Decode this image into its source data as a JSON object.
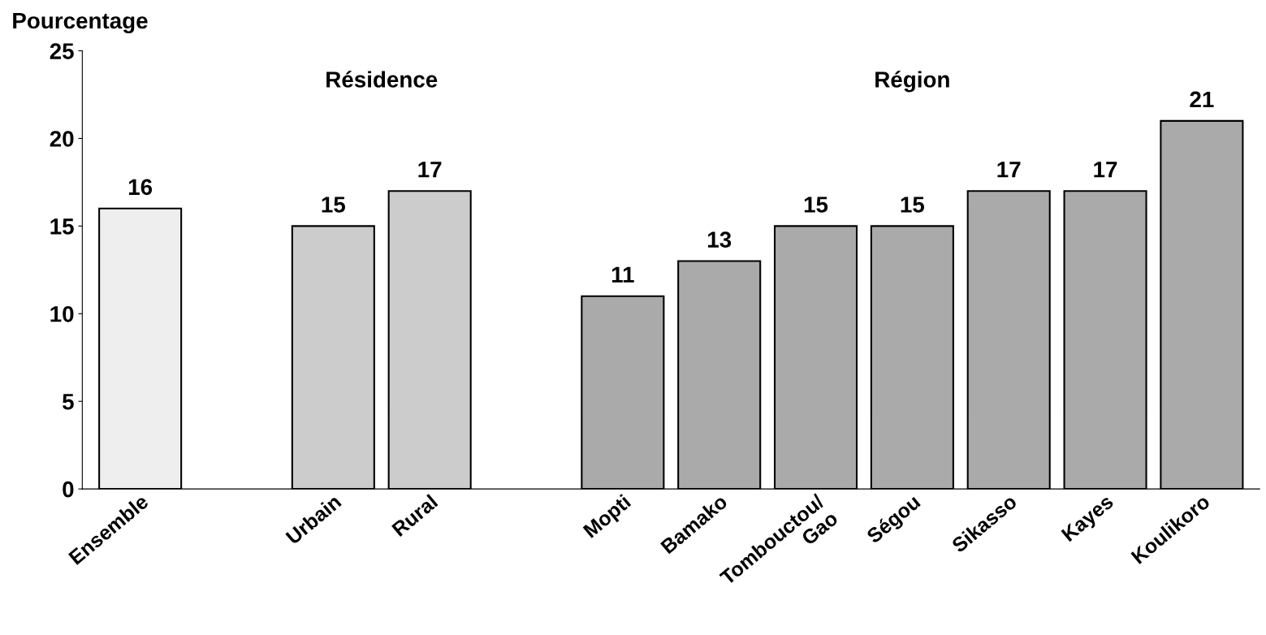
{
  "chart_data": {
    "type": "bar",
    "ylabel": "Pourcentage",
    "categories": [
      "Ensemble",
      null,
      "Urbain",
      "Rural",
      null,
      "Mopti",
      "Bamako",
      "Tombouctou/\nGao",
      "Ségou",
      "Sikasso",
      "Kayes",
      "Koulikoro"
    ],
    "values": [
      16,
      null,
      15,
      17,
      null,
      11,
      13,
      15,
      15,
      17,
      17,
      21
    ],
    "colors": [
      "#eeeeee",
      null,
      "#cccccc",
      "#cccccc",
      null,
      "#aaaaaa",
      "#aaaaaa",
      "#aaaaaa",
      "#aaaaaa",
      "#aaaaaa",
      "#aaaaaa",
      "#aaaaaa"
    ],
    "ylim": [
      0,
      25
    ],
    "yticks": [
      0,
      5,
      10,
      15,
      20,
      25
    ],
    "data_labels": true,
    "grid": false,
    "legend": false,
    "annotations": [
      "Résidence",
      "Région"
    ]
  }
}
